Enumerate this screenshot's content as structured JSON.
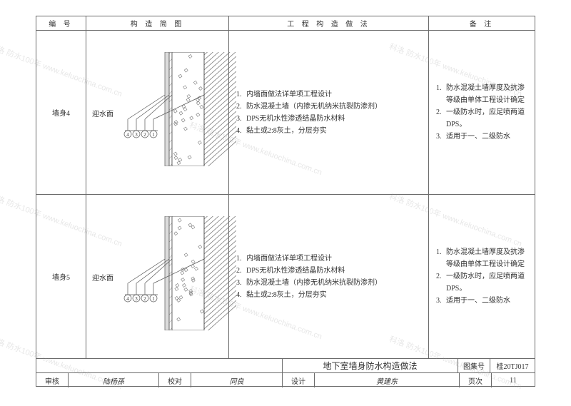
{
  "header": {
    "c1": "编 号",
    "c2": "构 造 简 图",
    "c3": "工 程 构 造 做 法",
    "c4": "备 注"
  },
  "rows": [
    {
      "id": "墙身4",
      "face_label": "迎水面",
      "method": [
        "内墙面做法详单项工程设计",
        "防水混凝土墙（内掺无机纳米抗裂防渗剂）",
        "DPS无机水性渗透结晶防水材料",
        "黏土或2:8灰土，分层夯实"
      ],
      "note": [
        "防水混凝土墙厚度及抗渗等级由单体工程设计确定",
        "一级防水时，应足喷两道DPS。",
        "适用于一、二级防水"
      ],
      "callouts": [
        "4",
        "3",
        "2",
        "1"
      ]
    },
    {
      "id": "墙身5",
      "face_label": "迎水面",
      "method": [
        "内墙面做法详单项工程设计",
        "DPS无机水性渗透结晶防水材料",
        "防水混凝土墙（内掺无机纳米抗裂防渗剂）",
        "黏土或2:8灰土，分层夯实"
      ],
      "note": [
        "防水混凝土墙厚度及抗渗等级由单体工程设计确定",
        "一级防水时，应足喷两道DPS。",
        "适用于一、二级防水"
      ],
      "callouts": [
        "4",
        "3",
        "2",
        "1"
      ]
    }
  ],
  "footer": {
    "title": "地下室墙身防水构造做法",
    "set_lbl": "图集号",
    "set_no": "桂20TJ017",
    "auditor_lbl": "审核",
    "auditor": "陆杨孫",
    "proof_lbl": "校对",
    "proof": "同良",
    "design_lbl": "设计",
    "design": "黄建东",
    "page_lbl": "页次",
    "page": "11"
  },
  "diagram_style": {
    "hatch_color": "#6f6f6f",
    "wall_fill": "#dcdcdc",
    "line": "#555555",
    "aggregate_color": "#7a7a7a"
  },
  "watermark": "科洛 防水100年 www.keluochina.com.cn"
}
